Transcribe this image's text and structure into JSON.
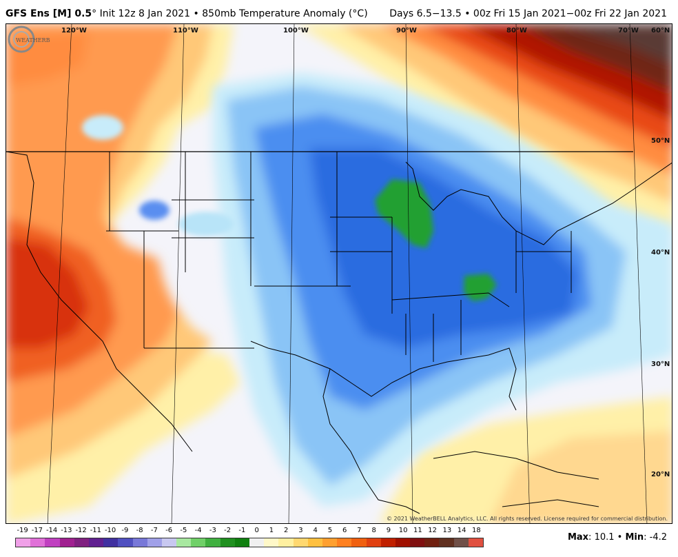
{
  "header": {
    "model": "GFS Ens [M] 0.5",
    "init": "Init 12z 8 Jan 2021",
    "field": "850mb Temperature Anomaly (",
    "unit": "C",
    "unit_close": ")",
    "valid": "Days 6.5−13.5 • 00z Fri 15 Jan 2021−00z Fri 22 Jan 2021"
  },
  "map": {
    "longitudes": [
      "120°W",
      "110°W",
      "100°W",
      "90°W",
      "80°W",
      "70°W"
    ],
    "latitudes": [
      "60°N",
      "50°N",
      "40°N",
      "30°N",
      "20°N"
    ],
    "copyright": "© 2021 WeatherBELL Analytics, LLC. All rights reserved. License required for commercial distribution.",
    "logo_text": "WEATHERBELL"
  },
  "legend": {
    "values": [
      "-19",
      "-17",
      "-14",
      "-13",
      "-12",
      "-11",
      "-10",
      "-9",
      "-8",
      "-7",
      "-6",
      "-5",
      "-4",
      "-3",
      "-2",
      "-1",
      "0",
      "1",
      "2",
      "3",
      "4",
      "5",
      "6",
      "7",
      "8",
      "9",
      "10",
      "11",
      "12",
      "13",
      "14",
      "18"
    ],
    "colors": [
      "#f0a0e8",
      "#e070d8",
      "#c040c0",
      "#a02090",
      "#802080",
      "#602090",
      "#4030a0",
      "#5050c0",
      "#7878d8",
      "#a0a0e8",
      "#c8c8f0",
      "#a8e8a0",
      "#70d068",
      "#40b040",
      "#209020",
      "#108010",
      "#f0f0f0",
      "#fff8c8",
      "#fff0a0",
      "#ffd870",
      "#ffc040",
      "#ffa030",
      "#ff8020",
      "#f06010",
      "#e04010",
      "#c02000",
      "#a01000",
      "#801010",
      "#702010",
      "#603020",
      "#705048",
      "#e05040"
    ]
  },
  "stats": {
    "max_label": "Max",
    "max_value": "10.1",
    "min_label": "Min",
    "min_value": "-4.2"
  },
  "colors": {
    "cold_deep": "#1e5fd8",
    "cold_mid": "#4a8df0",
    "cold_light": "#8cc4f8",
    "cold_pale": "#c6ecfa",
    "neutral": "#f4f4fa",
    "warm_pale": "#fff4b0",
    "warm_light": "#ffc870",
    "warm_mid": "#ff9040",
    "warm_deep": "#e84010",
    "hot": "#b01800",
    "hottest": "#5a3830",
    "green_anomaly": "#22a030"
  }
}
